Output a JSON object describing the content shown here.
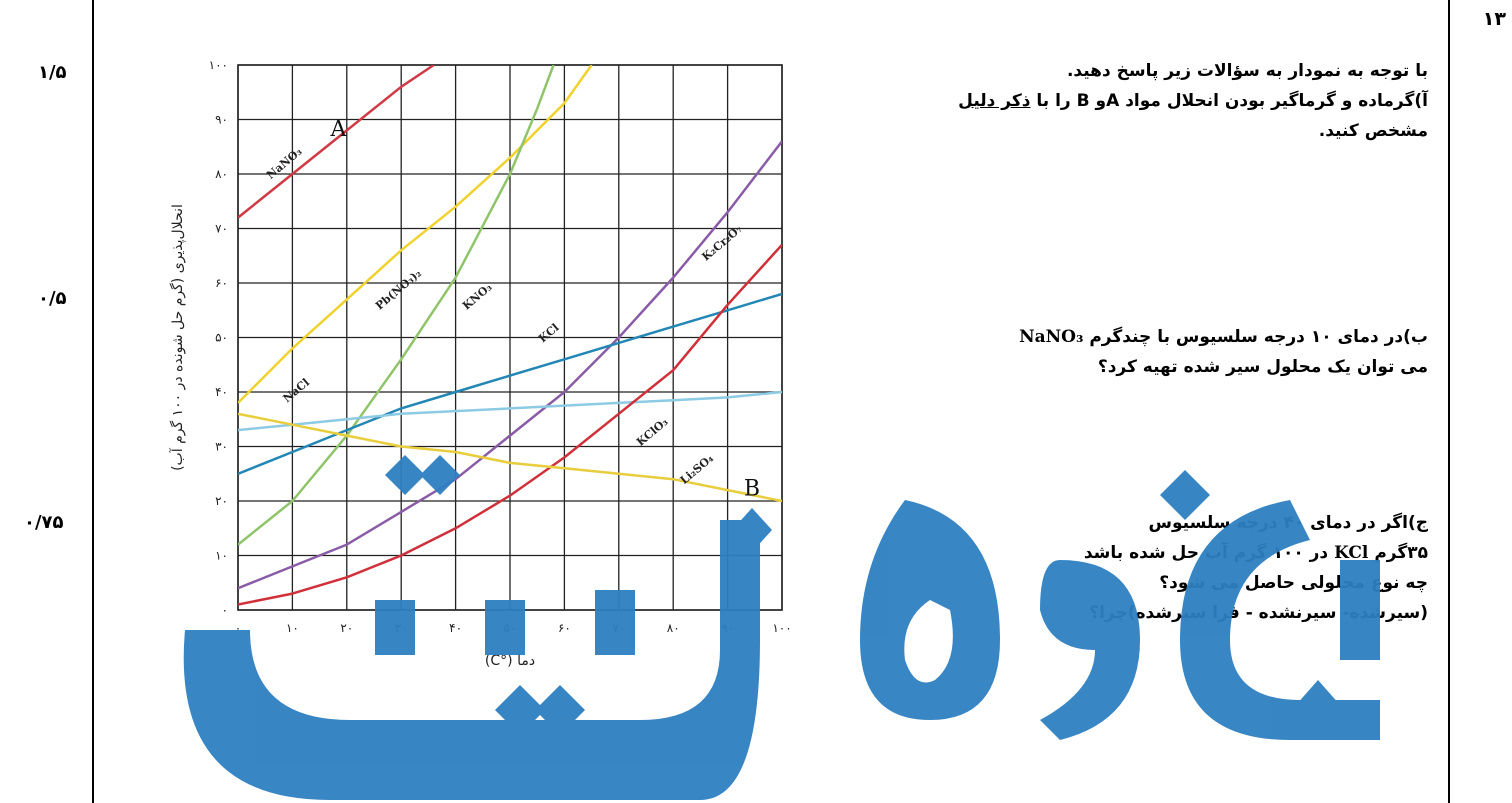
{
  "question_number": "۱۳",
  "marks": [
    "۱/۵",
    "۰/۵",
    "۰/۷۵"
  ],
  "question": {
    "intro": "با توجه به نمودار به سؤالات زیر پاسخ دهید.",
    "part_a_pre": "آ)گرماده و گرماگیر بودن انحلال مواد Aو B را با ",
    "part_a_underline": "ذکر دلیل",
    "part_a_post": "مشخص کنید.",
    "part_b_line1_text": "ب)در دمای ۱۰ درجه سلسیوس با چندگرم",
    "part_b_formula": "NaNO₃",
    "part_b_line2": "می توان یک محلول سیر شده تهیه کرد؟",
    "part_c_line1": "ج)اگر در دمای ۴۰ درجه سلسیوس",
    "part_c_line2_pre": "۳۵گرم",
    "part_c_formula": "KCl",
    "part_c_line2_post": "در ۱۰۰ گرم آب حل شده باشد",
    "part_c_line3": "چه نوع محلولی حاصل می شود؟",
    "part_c_line4": "(سیرشده- سیرنشده - فرا سیرشده)چرا؟"
  },
  "watermark": {
    "text": "جزوه سیتی",
    "color": "#2e7fc1"
  },
  "chart_data": {
    "type": "line",
    "xlabel": "دما (°C)",
    "ylabel": "انحلال‌پذیری (گرم حل شونده در ۱۰۰ گرم آب)",
    "xlim": [
      0,
      100
    ],
    "ylim": [
      0,
      100
    ],
    "x_tick_labels": [
      "۰",
      "۱۰",
      "۲۰",
      "۳۰",
      "۴۰",
      "۵۰",
      "۶۰",
      "۷۰",
      "۸۰",
      "۹۰",
      "۱۰۰"
    ],
    "y_tick_labels": [
      "۰",
      "۱۰",
      "۲۰",
      "۳۰",
      "۴۰",
      "۵۰",
      "۶۰",
      "۷۰",
      "۸۰",
      "۹۰",
      "۱۰۰"
    ],
    "grid": true,
    "annotations": [
      {
        "text": "A",
        "x": 17,
        "y": 87
      },
      {
        "text": "B",
        "x": 93,
        "y": 21
      }
    ],
    "series": [
      {
        "name": "NaNO₃",
        "color": "#d03a45",
        "label_at": [
          6,
          79
        ],
        "x": [
          0,
          10,
          20,
          30,
          36
        ],
        "y": [
          72,
          80,
          88,
          96,
          100
        ]
      },
      {
        "name": "Pb(NO₃)₂",
        "color": "#f0d22e",
        "label_at": [
          26,
          55
        ],
        "x": [
          0,
          10,
          20,
          30,
          40,
          50,
          60,
          65
        ],
        "y": [
          38,
          48,
          57,
          66,
          74,
          83,
          93,
          100
        ]
      },
      {
        "name": "KNO₃",
        "color": "#8fc46a",
        "label_at": [
          42,
          55
        ],
        "x": [
          0,
          10,
          20,
          30,
          40,
          50,
          55,
          58
        ],
        "y": [
          12,
          20,
          32,
          46,
          61,
          80,
          92,
          100
        ]
      },
      {
        "name": "K₂Cr₂O₇",
        "color": "#8a5ca8",
        "label_at": [
          86,
          64
        ],
        "x": [
          0,
          10,
          20,
          30,
          40,
          50,
          60,
          70,
          80,
          90,
          100
        ],
        "y": [
          4,
          8,
          12,
          18,
          24,
          32,
          40,
          50,
          61,
          73,
          86
        ]
      },
      {
        "name": "KCl",
        "color": "#2387b6",
        "label_at": [
          56,
          49
        ],
        "x": [
          0,
          10,
          20,
          30,
          40,
          50,
          60,
          70,
          80,
          90,
          100
        ],
        "y": [
          25,
          29,
          33,
          37,
          40,
          43,
          46,
          49,
          52,
          55,
          58
        ]
      },
      {
        "name": "NaCl",
        "color": "#8ccbe3",
        "label_at": [
          9,
          38
        ],
        "x": [
          0,
          10,
          20,
          30,
          40,
          50,
          60,
          70,
          80,
          90,
          100
        ],
        "y": [
          33,
          34,
          35,
          36,
          36.5,
          37,
          37.5,
          38,
          38.5,
          39,
          40
        ]
      },
      {
        "name": "KClO₃",
        "color": "#d0303a",
        "label_at": [
          74,
          30
        ],
        "x": [
          0,
          10,
          20,
          30,
          40,
          50,
          60,
          70,
          80,
          90,
          100
        ],
        "y": [
          1,
          3,
          6,
          10,
          15,
          21,
          28,
          36,
          44,
          56,
          67
        ]
      },
      {
        "name": "Li₂SO₄",
        "color": "#e8cd3c",
        "label_at": [
          82,
          23
        ],
        "x": [
          0,
          10,
          20,
          30,
          40,
          50,
          60,
          70,
          80,
          90,
          100
        ],
        "y": [
          36,
          34,
          32,
          30,
          29,
          27,
          26,
          25,
          24,
          22,
          20
        ]
      }
    ]
  }
}
